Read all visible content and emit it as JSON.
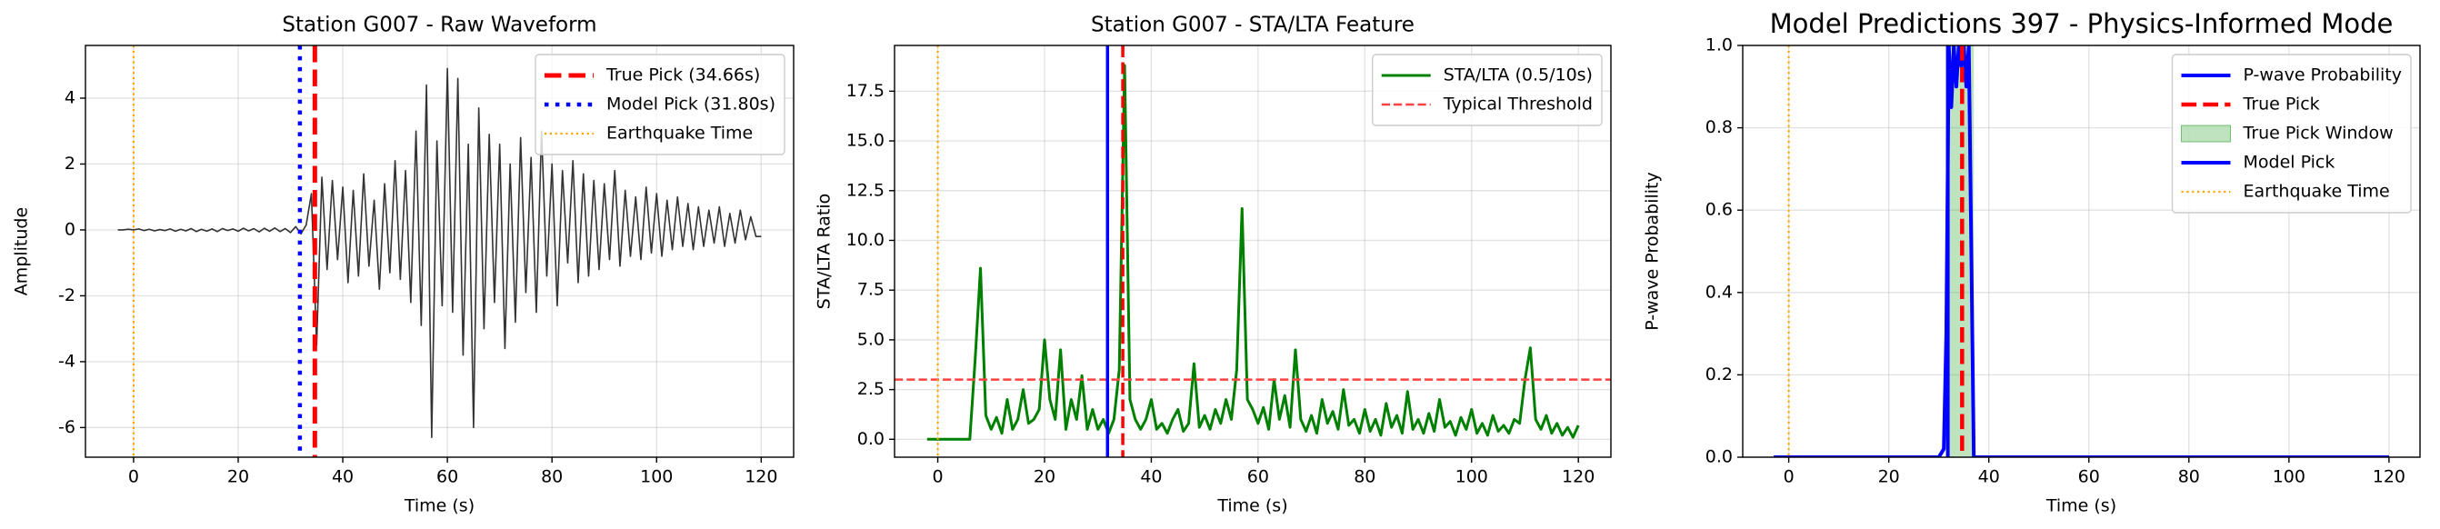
{
  "chart_data": [
    {
      "type": "line",
      "title": "Station G007 - Raw Waveform",
      "xlabel": "Time (s)",
      "ylabel": "Amplitude",
      "x": [
        -3,
        -2,
        -1,
        0,
        1,
        2,
        3,
        4,
        5,
        6,
        7,
        8,
        9,
        10,
        11,
        12,
        13,
        14,
        15,
        16,
        17,
        18,
        19,
        20,
        21,
        22,
        23,
        24,
        25,
        26,
        27,
        28,
        29,
        30,
        31,
        32,
        33,
        34,
        35,
        36,
        37,
        38,
        39,
        40,
        41,
        42,
        43,
        44,
        45,
        46,
        47,
        48,
        49,
        50,
        51,
        52,
        53,
        54,
        55,
        56,
        57,
        58,
        59,
        60,
        61,
        62,
        63,
        64,
        65,
        66,
        67,
        68,
        69,
        70,
        71,
        72,
        73,
        74,
        75,
        76,
        77,
        78,
        79,
        80,
        81,
        82,
        83,
        84,
        85,
        86,
        87,
        88,
        89,
        90,
        91,
        92,
        93,
        94,
        95,
        96,
        97,
        98,
        99,
        100,
        101,
        102,
        103,
        104,
        105,
        106,
        107,
        108,
        109,
        110,
        111,
        112,
        113,
        114,
        115,
        116,
        117,
        118,
        119,
        120
      ],
      "series": [
        {
          "color": "#333333",
          "linewidth": 1.6,
          "values": [
            0,
            0,
            0.02,
            0,
            0.03,
            -0.02,
            0.02,
            -0.03,
            0.01,
            -0.02,
            0.03,
            -0.04,
            0.02,
            -0.03,
            0.04,
            -0.05,
            0.02,
            -0.04,
            0.03,
            -0.05,
            0.04,
            -0.02,
            0.03,
            -0.04,
            0.05,
            -0.03,
            0.04,
            -0.06,
            0.05,
            -0.04,
            0.06,
            -0.05,
            0.04,
            -0.08,
            0.1,
            -0.12,
            0.15,
            1.1,
            -3.5,
            1.6,
            -1.2,
            1.5,
            -0.9,
            1.3,
            -1.6,
            1.2,
            -1.4,
            1.7,
            -1.1,
            0.9,
            -1.8,
            1.4,
            -1.3,
            2.1,
            -1.5,
            1.8,
            -2.2,
            3.0,
            -2.9,
            4.4,
            -6.3,
            2.7,
            -2.3,
            4.9,
            -2.5,
            4.6,
            -3.8,
            2.6,
            -6.0,
            3.7,
            -3.0,
            2.9,
            -2.2,
            2.6,
            -3.6,
            2.0,
            -2.8,
            2.8,
            -1.9,
            2.2,
            -2.5,
            3.0,
            -1.4,
            2.0,
            -2.3,
            1.8,
            -1.0,
            2.1,
            -1.6,
            1.7,
            -1.4,
            1.5,
            -1.2,
            1.4,
            -0.9,
            1.8,
            -1.1,
            1.2,
            -0.8,
            1.0,
            -0.9,
            1.3,
            -0.7,
            1.1,
            -0.8,
            0.9,
            -0.6,
            1.0,
            -0.5,
            0.8,
            -0.6,
            0.7,
            -0.5,
            0.6,
            -0.4,
            0.7,
            -0.5,
            0.5,
            -0.4,
            0.6,
            -0.3,
            0.4,
            -0.2,
            -0.2
          ]
        }
      ],
      "overlays": [
        {
          "kind": "vline",
          "name": "True Pick (34.66s)",
          "x": 34.66,
          "color": "#ff0000",
          "style": "dashed",
          "linewidth": 5
        },
        {
          "kind": "vline",
          "name": "Model Pick (31.80s)",
          "x": 31.8,
          "color": "#0000ff",
          "style": "dotted",
          "linewidth": 4.5
        },
        {
          "kind": "vline",
          "name": "Earthquake Time",
          "x": 0,
          "color": "#ffa500",
          "style": "dotted",
          "linewidth": 2.2
        }
      ],
      "xlim": [
        -9.2,
        126.2
      ],
      "ylim": [
        -6.9,
        5.6
      ],
      "xticks": [
        0,
        20,
        40,
        60,
        80,
        100,
        120
      ],
      "yticks": [
        -6,
        -4,
        -2,
        0,
        2,
        4
      ],
      "grid": true,
      "legend": "upper right"
    },
    {
      "type": "line",
      "title": "Station G007 - STA/LTA Feature",
      "xlabel": "Time (s)",
      "ylabel": "STA/LTA Ratio",
      "x": [
        -2,
        -1,
        0,
        1,
        2,
        3,
        4,
        5,
        6,
        7,
        8,
        9,
        10,
        11,
        12,
        13,
        14,
        15,
        16,
        17,
        18,
        19,
        20,
        21,
        22,
        23,
        24,
        25,
        26,
        27,
        28,
        29,
        30,
        31,
        32,
        33,
        34,
        35,
        36,
        37,
        38,
        39,
        40,
        41,
        42,
        43,
        44,
        45,
        46,
        47,
        48,
        49,
        50,
        51,
        52,
        53,
        54,
        55,
        56,
        57,
        58,
        59,
        60,
        61,
        62,
        63,
        64,
        65,
        66,
        67,
        68,
        69,
        70,
        71,
        72,
        73,
        74,
        75,
        76,
        77,
        78,
        79,
        80,
        81,
        82,
        83,
        84,
        85,
        86,
        87,
        88,
        89,
        90,
        91,
        92,
        93,
        94,
        95,
        96,
        97,
        98,
        99,
        100,
        101,
        102,
        103,
        104,
        105,
        106,
        107,
        108,
        109,
        110,
        111,
        112,
        113,
        114,
        115,
        116,
        117,
        118,
        119,
        120
      ],
      "series": [
        {
          "name": "STA/LTA (0.5/10s)",
          "color": "#008000",
          "linewidth": 3,
          "values": [
            0,
            0,
            0,
            0,
            0,
            0,
            0,
            0,
            0,
            4.0,
            8.6,
            1.2,
            0.5,
            1.1,
            0.3,
            2.0,
            0.5,
            1.0,
            2.5,
            0.8,
            1.0,
            1.5,
            5.0,
            2.0,
            1.0,
            4.5,
            0.5,
            2.0,
            1.0,
            3.2,
            0.5,
            1.5,
            0.5,
            1.0,
            0.3,
            1.0,
            3.5,
            18.8,
            2.0,
            1.0,
            0.5,
            1.0,
            2.0,
            0.5,
            0.8,
            0.3,
            1.0,
            1.5,
            0.4,
            0.8,
            3.8,
            0.6,
            1.2,
            0.5,
            1.5,
            0.8,
            2.0,
            1.0,
            3.5,
            11.6,
            2.0,
            1.5,
            0.8,
            1.6,
            0.5,
            3.0,
            1.0,
            2.2,
            0.6,
            4.5,
            1.0,
            0.4,
            1.2,
            0.3,
            2.0,
            0.8,
            1.4,
            0.5,
            2.5,
            0.7,
            1.0,
            0.3,
            1.5,
            0.4,
            1.0,
            0.2,
            1.8,
            0.6,
            1.2,
            0.3,
            2.4,
            0.5,
            1.0,
            0.3,
            1.3,
            0.4,
            2.0,
            0.6,
            0.9,
            0.2,
            1.1,
            0.5,
            1.5,
            0.3,
            0.8,
            0.2,
            1.2,
            0.4,
            0.7,
            0.3,
            1.0,
            0.8,
            3.0,
            4.6,
            1.0,
            0.5,
            1.2,
            0.3,
            0.8,
            0.2,
            0.6,
            0.1,
            0.7
          ]
        }
      ],
      "overlays": [
        {
          "kind": "hline",
          "name": "Typical Threshold",
          "y": 3.0,
          "color": "#ff4040",
          "style": "dashed",
          "linewidth": 2.5
        },
        {
          "kind": "vline",
          "x": 31.8,
          "color": "#0000ff",
          "style": "solid",
          "linewidth": 3.5
        },
        {
          "kind": "vline",
          "x": 34.66,
          "color": "#ff0000",
          "style": "dashed",
          "linewidth": 3.5
        },
        {
          "kind": "vline",
          "x": 0,
          "color": "#ffa500",
          "style": "dotted",
          "linewidth": 2.2
        }
      ],
      "xlim": [
        -8.1,
        126.1
      ],
      "ylim": [
        -0.9,
        19.8
      ],
      "xticks": [
        0,
        20,
        40,
        60,
        80,
        100,
        120
      ],
      "yticks": [
        {
          "value": 0,
          "label": "0.0"
        },
        {
          "value": 2.5,
          "label": "2.5"
        },
        {
          "value": 5,
          "label": "5.0"
        },
        {
          "value": 7.5,
          "label": "7.5"
        },
        {
          "value": 10,
          "label": "10.0"
        },
        {
          "value": 12.5,
          "label": "12.5"
        },
        {
          "value": 15,
          "label": "15.0"
        },
        {
          "value": 17.5,
          "label": "17.5"
        }
      ],
      "grid": true,
      "legend": "upper right"
    },
    {
      "type": "line",
      "title": "Model Predictions 397 - Physics-Informed Mode",
      "xlabel": "Time (s)",
      "ylabel": "P-wave Probability",
      "x": [
        -3,
        30,
        31,
        31.5,
        32,
        32.5,
        33,
        33.5,
        34,
        34.5,
        35,
        35.5,
        36,
        36.5,
        37,
        120
      ],
      "series": [
        {
          "name": "P-wave Probability",
          "color": "#0000ff",
          "linewidth": 4,
          "values": [
            0,
            0,
            0.02,
            0.3,
            1,
            0.85,
            1,
            0.9,
            1,
            0.95,
            1,
            0.9,
            1,
            0.5,
            0,
            0
          ]
        }
      ],
      "overlays": [
        {
          "kind": "vline",
          "name": "True Pick",
          "x": 34.66,
          "color": "#ff0000",
          "style": "dashed",
          "linewidth": 4.5
        },
        {
          "kind": "span",
          "name": "True Pick Window",
          "x0": 32,
          "x1": 37,
          "color": "#2ca02c",
          "opacity": 0.3
        },
        {
          "kind": "vline",
          "name": "Model Pick",
          "x": 31.8,
          "color": "#0000ff",
          "style": "solid",
          "linewidth": 4
        },
        {
          "kind": "vline",
          "name": "Earthquake Time",
          "x": 0,
          "color": "#ffa500",
          "style": "dotted",
          "linewidth": 2.2
        }
      ],
      "xlim": [
        -9.2,
        126.2
      ],
      "ylim": [
        0,
        1
      ],
      "xticks": [
        0,
        20,
        40,
        60,
        80,
        100,
        120
      ],
      "yticks": [
        {
          "value": 0,
          "label": "0.0"
        },
        {
          "value": 0.2,
          "label": "0.2"
        },
        {
          "value": 0.4,
          "label": "0.4"
        },
        {
          "value": 0.6,
          "label": "0.6"
        },
        {
          "value": 0.8,
          "label": "0.8"
        },
        {
          "value": 1,
          "label": "1.0"
        }
      ],
      "grid": true,
      "legend": "upper right"
    }
  ]
}
